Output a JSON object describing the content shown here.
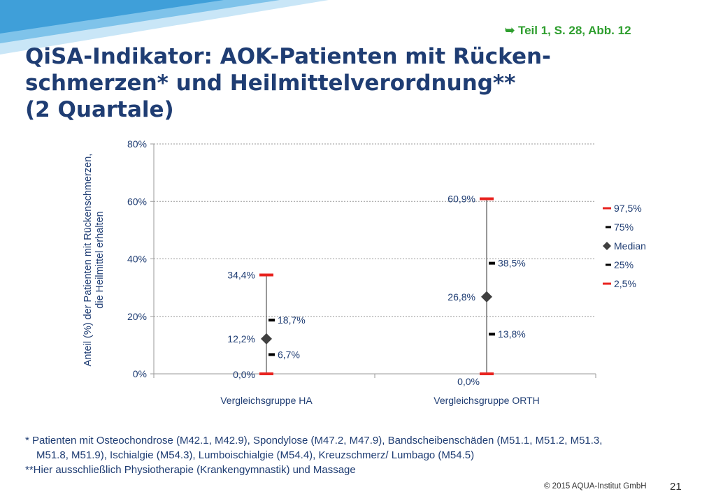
{
  "reference": "➥ Teil  1, S. 28, Abb. 12",
  "title_lines": [
    "QiSA-Indikator: AOK-Patienten mit Rücken-",
    "schmerzen* und Heilmittelverordnung**",
    "(2 Quartale)"
  ],
  "colors": {
    "title": "#1f3d73",
    "reference": "#2e9e2e",
    "p975": "#e8231f",
    "p75": "#000000",
    "median": "#404040",
    "p25": "#000000",
    "p25_red": "#e8231f",
    "axis_text": "#1f3d73",
    "banner": "#4aa6dc"
  },
  "chart_data": {
    "type": "boxplot",
    "ylabel_lines": [
      "Anteil (%) der Patienten mit Rückenschmerzen,",
      "die Heilmittel erhalten"
    ],
    "ylim": [
      0,
      80
    ],
    "yticks": [
      0,
      20,
      40,
      60,
      80
    ],
    "ytick_labels": [
      "0%",
      "20%",
      "40%",
      "60%",
      "80%"
    ],
    "grid": true,
    "legend_position": "right",
    "categories": [
      "Vergleichsgruppe HA",
      "Vergleichsgruppe ORTH"
    ],
    "series": [
      {
        "name": "97,5%",
        "values": [
          34.4,
          60.9
        ],
        "labels": [
          "34,4%",
          "60,9%"
        ]
      },
      {
        "name": "75%",
        "values": [
          18.7,
          38.5
        ],
        "labels": [
          "18,7%",
          "38,5%"
        ]
      },
      {
        "name": "Median",
        "values": [
          12.2,
          26.8
        ],
        "labels": [
          "12,2%",
          "26,8%"
        ]
      },
      {
        "name": "25%",
        "values": [
          6.7,
          13.8
        ],
        "labels": [
          "6,7%",
          "13,8%"
        ]
      },
      {
        "name": "2,5%",
        "values": [
          0.0,
          0.0
        ],
        "labels": [
          "0,0%",
          "0,0%"
        ]
      }
    ]
  },
  "footnotes": [
    "* Patienten mit Osteochondrose (M42.1, M42.9), Spondylose (M47.2, M47.9), Bandscheibenschäden (M51.1, M51.2, M51.3,",
    "M51.8, M51.9), Ischialgie (M54.3), Lumboischialgie (M54.4), Kreuzschmerz/  Lumbago (M54.5)",
    "**Hier ausschließlich Physiotherapie (Krankengymnastik) und Massage"
  ],
  "copyright": "© 2015 AQUA-Institut GmbH",
  "page_number": "21"
}
